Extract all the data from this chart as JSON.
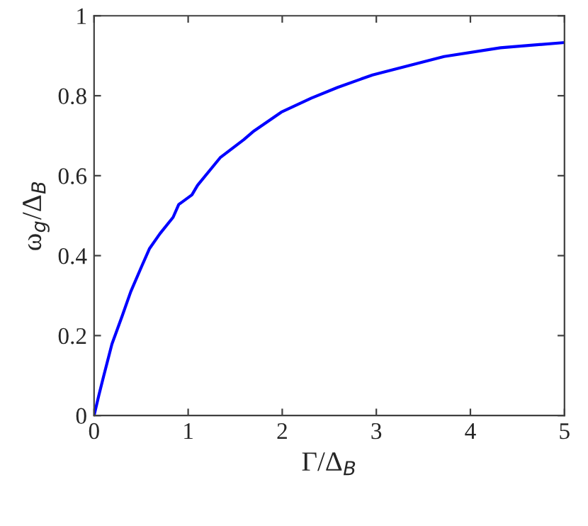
{
  "chart_data": {
    "type": "line",
    "xlabel": "Γ/Δ$_{B}$",
    "ylabel": "ω$_{g}$/Δ$_{B}$",
    "xlim": [
      0,
      5
    ],
    "ylim": [
      0,
      1
    ],
    "xticks": [
      0,
      1,
      2,
      3,
      4,
      5
    ],
    "yticks": [
      0,
      0.2,
      0.4,
      0.6,
      0.8,
      1
    ],
    "grid": false,
    "legend": false,
    "series": [
      {
        "color": "#0000ff",
        "x": [
          0,
          0.05,
          0.1,
          0.19,
          0.3,
          0.39,
          0.5,
          0.59,
          0.7,
          0.84,
          0.9,
          1.04,
          1.1,
          1.34,
          1.59,
          1.7,
          1.99,
          2.31,
          2.59,
          2.96,
          3.72,
          4.32,
          5.0
        ],
        "values": [
          0,
          0.05,
          0.097,
          0.179,
          0.25,
          0.31,
          0.37,
          0.418,
          0.455,
          0.496,
          0.528,
          0.552,
          0.576,
          0.645,
          0.69,
          0.712,
          0.759,
          0.794,
          0.821,
          0.852,
          0.898,
          0.92,
          0.933
        ]
      }
    ]
  }
}
